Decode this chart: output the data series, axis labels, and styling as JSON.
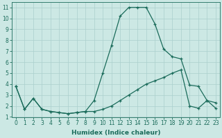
{
  "xlabel": "Humidex (Indice chaleur)",
  "background_color": "#cce8e4",
  "grid_color": "#aacfcc",
  "line_color": "#1a6b5a",
  "xlim": [
    -0.5,
    23.5
  ],
  "ylim": [
    1,
    11.5
  ],
  "yticks": [
    1,
    2,
    3,
    4,
    5,
    6,
    7,
    8,
    9,
    10,
    11
  ],
  "xticks": [
    0,
    1,
    2,
    3,
    4,
    5,
    6,
    7,
    8,
    9,
    10,
    11,
    12,
    13,
    14,
    15,
    16,
    17,
    18,
    19,
    20,
    21,
    22,
    23
  ],
  "series1_x": [
    0,
    1,
    2,
    3,
    4,
    5,
    6,
    7,
    8,
    9,
    10,
    11,
    12,
    13,
    14,
    15,
    16,
    17,
    18,
    19,
    20,
    21,
    22,
    23
  ],
  "series1_y": [
    3.8,
    1.7,
    2.7,
    1.7,
    1.5,
    1.4,
    1.3,
    1.4,
    1.5,
    2.5,
    5.0,
    7.5,
    10.2,
    11.0,
    11.0,
    11.0,
    9.5,
    7.2,
    6.5,
    6.3,
    3.9,
    3.8,
    2.5,
    2.3
  ],
  "series2_x": [
    0,
    1,
    2,
    3,
    4,
    5,
    6,
    7,
    8,
    9,
    10,
    11,
    12,
    13,
    14,
    15,
    16,
    17,
    18,
    19,
    20,
    21,
    22,
    23
  ],
  "series2_y": [
    3.8,
    1.7,
    2.7,
    1.7,
    1.5,
    1.4,
    1.3,
    1.4,
    1.5,
    1.5,
    1.7,
    2.0,
    2.5,
    3.0,
    3.5,
    4.0,
    4.3,
    4.6,
    5.0,
    5.3,
    2.0,
    1.8,
    2.5,
    1.8
  ],
  "tick_fontsize": 5.5,
  "xlabel_fontsize": 6.5
}
